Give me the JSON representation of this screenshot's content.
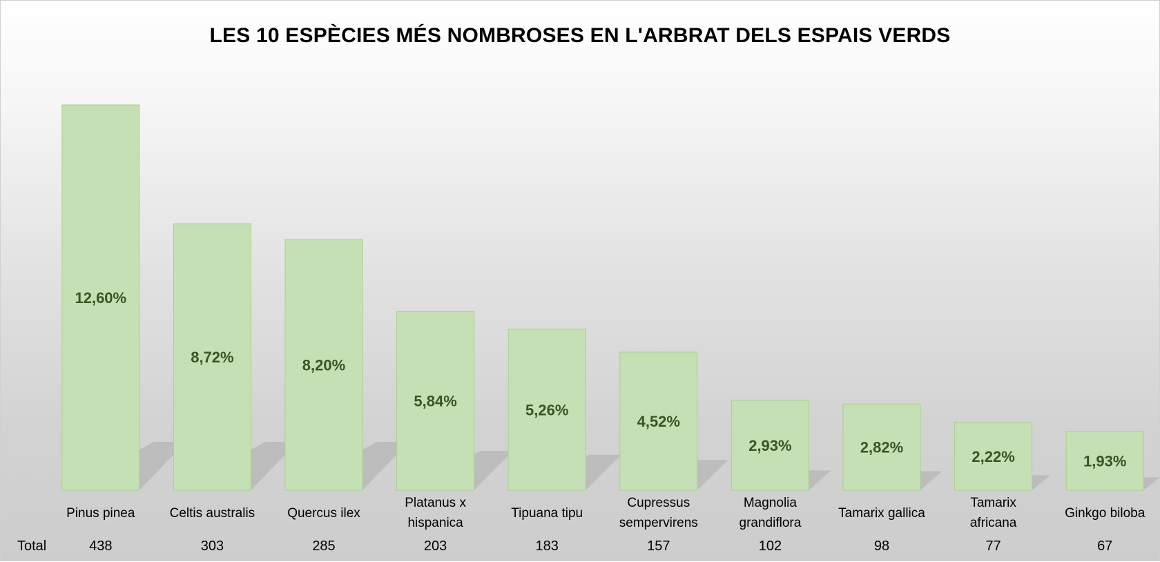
{
  "chart_data": {
    "type": "bar",
    "title": "LES 10 ESPÈCIES MÉS NOMBROSES EN L'ARBRAT DELS ESPAIS VERDS",
    "categories": [
      [
        "Pinus pinea"
      ],
      [
        "Celtis australis"
      ],
      [
        "Quercus ilex"
      ],
      [
        "Platanus x",
        "hispanica"
      ],
      [
        "Tipuana tipu"
      ],
      [
        "Cupressus",
        "sempervirens"
      ],
      [
        "Magnolia",
        "grandiflora"
      ],
      [
        "Tamarix gallica"
      ],
      [
        "Tamarix",
        "africana"
      ],
      [
        "Ginkgo biloba"
      ]
    ],
    "values": [
      438,
      303,
      285,
      203,
      183,
      157,
      102,
      98,
      77,
      67
    ],
    "data_labels": [
      "12,60%",
      "8,72%",
      "8,20%",
      "5,84%",
      "5,26%",
      "4,52%",
      "2,93%",
      "2,82%",
      "2,22%",
      "1,93%"
    ],
    "table_row_label": "Total",
    "ylim": [
      0,
      438
    ],
    "grid": false,
    "legend": "none",
    "colors": {
      "bar_fill": "#c5e0b4",
      "bar_border": "#a9d18e",
      "label_text": "#375623"
    }
  }
}
